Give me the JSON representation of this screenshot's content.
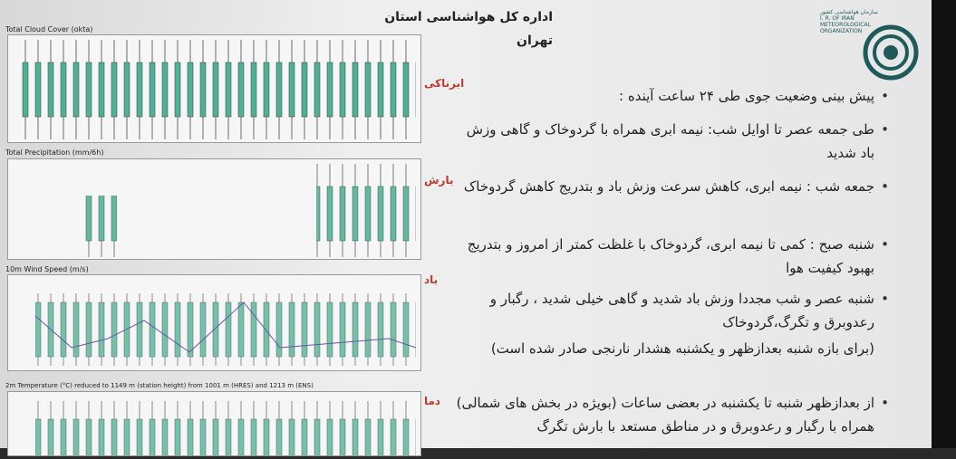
{
  "header": {
    "title": "اداره کل هواشناسی استان تهران"
  },
  "logo": {
    "fa": "سازمان هواشناسی کشور",
    "line1": "I. R. OF IRAN",
    "line2": "METEOROLOGICAL",
    "line3": "ORGANIZATION"
  },
  "panels": [
    {
      "title": "Total Cloud Cover (okta)",
      "label": "ابرناکی"
    },
    {
      "title": "Total Precipitation (mm/6h)",
      "label": "بارش"
    },
    {
      "title": "10m Wind Speed (m/s)",
      "label": "باد"
    },
    {
      "title": "2m Temperature (°C) reduced to 1149 m (station height) from 1001 m (HRES) and 1213 m (ENS)",
      "label": "دما"
    }
  ],
  "bullets": [
    "پیش بینی وضعیت جوی طی ۲۴ ساعت آینده :",
    "طی جمعه عصر تا اوایل شب: نیمه ابری همراه با گردوخاک و گاهی وزش باد شدید",
    "جمعه شب : نیمه ابری، کاهش سرعت وزش باد و بتدریج کاهش گردوخاک",
    "شنبه صبح : کمی تا نیمه ابری، گردوخاک با غلظت کمتر از امروز و بتدریج بهبود کیفیت هوا",
    "شنبه عصر و شب مجددا وزش باد شدید و گاهی خیلی شدید ، رگبار و رعدوبرق و تگرگ،گردوخاک"
  ],
  "note": "(برای بازه شنبه بعدازظهر و یکشنبه هشدار نارنجی صادر شده است)",
  "bullet_last": "از بعدازظهر شنبه تا یکشنبه در بعضی ساعات (بویژه در بخش های شمالی) همراه با رگبار و رعدوبرق و در مناطق مستعد با بارش تگرگ"
}
